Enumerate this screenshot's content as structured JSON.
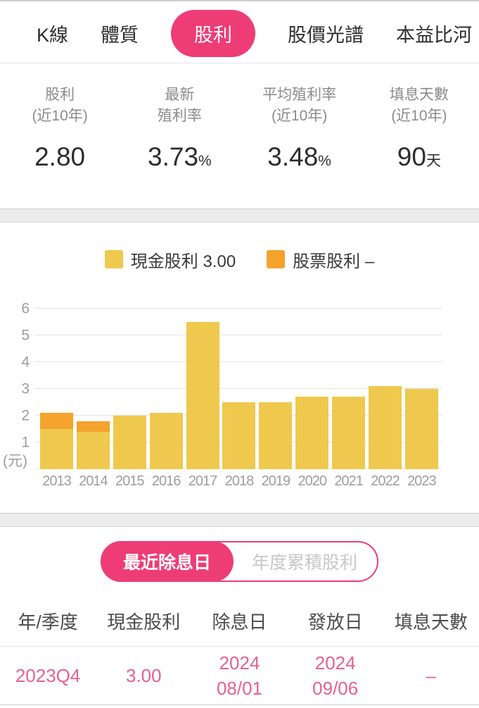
{
  "colors": {
    "accent_pink": "#ee3d76",
    "bar_yellow": "#efc84e",
    "bar_orange": "#f4a32d",
    "table_value_pink": "#e8618c"
  },
  "tabs": {
    "items": [
      {
        "id": "k-line",
        "label": "K線",
        "active": false
      },
      {
        "id": "constitution",
        "label": "體質",
        "active": false
      },
      {
        "id": "dividend",
        "label": "股利",
        "active": true
      },
      {
        "id": "price-spectrum",
        "label": "股價光譜",
        "active": false
      },
      {
        "id": "pe-river",
        "label": "本益比河",
        "active": false
      }
    ]
  },
  "stats": {
    "items": [
      {
        "id": "dividend-10y",
        "label_line1": "股利",
        "label_line2": "(近10年)",
        "value": "2.80",
        "suffix": ""
      },
      {
        "id": "latest-yield",
        "label_line1": "最新",
        "label_line2": "殖利率",
        "value": "3.73",
        "suffix": "%"
      },
      {
        "id": "avg-yield-10y",
        "label_line1": "平均殖利率",
        "label_line2": "(近10年)",
        "value": "3.48",
        "suffix": "%"
      },
      {
        "id": "fill-days-10y",
        "label_line1": "填息天數",
        "label_line2": "(近10年)",
        "value": "90",
        "suffix": "天"
      }
    ]
  },
  "chart_data": {
    "type": "bar",
    "stacked": true,
    "categories": [
      "2013",
      "2014",
      "2015",
      "2016",
      "2017",
      "2018",
      "2019",
      "2020",
      "2021",
      "2022",
      "2023"
    ],
    "series": [
      {
        "id": "cash-dividend",
        "name": "現金股利",
        "legend": "現金股利 3.00",
        "color": "#efc84e",
        "values": [
          1.5,
          1.4,
          2.0,
          2.1,
          5.5,
          2.5,
          2.5,
          2.7,
          2.7,
          3.1,
          3.0
        ]
      },
      {
        "id": "stock-dividend",
        "name": "股票股利",
        "legend": "股票股利 –",
        "color": "#f4a32d",
        "values": [
          0.6,
          0.4,
          0,
          0,
          0,
          0,
          0,
          0,
          0,
          0,
          0
        ]
      }
    ],
    "ylabel": "(元)",
    "ylim": [
      0,
      6
    ],
    "yticks": [
      1,
      2,
      3,
      4,
      5,
      6
    ],
    "grid": true,
    "legend_position": "top"
  },
  "toggle": {
    "options": [
      {
        "id": "latest-ex-date",
        "label": "最近除息日",
        "active": true
      },
      {
        "id": "annual-cumulative",
        "label": "年度累積股利",
        "active": false
      }
    ]
  },
  "table": {
    "headers": [
      "年/季度",
      "現金股利",
      "除息日",
      "發放日",
      "填息天數"
    ],
    "rows": [
      [
        [
          "2023Q4"
        ],
        [
          "3.00"
        ],
        [
          "2024",
          "08/01"
        ],
        [
          "2024",
          "09/06"
        ],
        [
          "–"
        ]
      ]
    ]
  }
}
